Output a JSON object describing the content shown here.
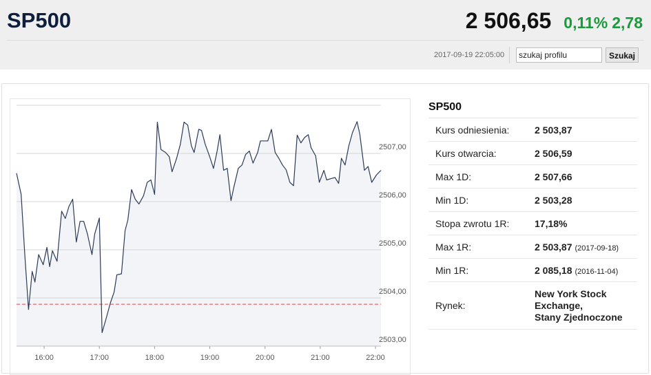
{
  "header": {
    "title": "SP500",
    "price": "2 506,65",
    "change_pct": "0,11%",
    "change": "2,78",
    "timestamp": "2017-09-19 22:05:00",
    "search_placeholder": "szukaj profilu",
    "search_button": "Szukaj"
  },
  "chart_data": {
    "type": "line",
    "line_color": "#2b3a57",
    "area_color": "#f2f4f7",
    "x": [
      930,
      935,
      939,
      943,
      947,
      950,
      954,
      959,
      963,
      966,
      969,
      974,
      979,
      983,
      987,
      991,
      995,
      999,
      1003,
      1007,
      1012,
      1015,
      1020,
      1023,
      1027,
      1032,
      1036,
      1039,
      1044,
      1048,
      1051,
      1055,
      1059,
      1063,
      1068,
      1072,
      1076,
      1080,
      1083,
      1087,
      1092,
      1096,
      1099,
      1104,
      1108,
      1112,
      1116,
      1120,
      1123,
      1128,
      1131,
      1135,
      1140,
      1144,
      1148,
      1151,
      1155,
      1159,
      1163,
      1166,
      1171,
      1175,
      1179,
      1183,
      1187,
      1192,
      1195,
      1199,
      1203,
      1207,
      1211,
      1215,
      1219,
      1223,
      1227,
      1231,
      1235,
      1239,
      1243,
      1247,
      1250,
      1255,
      1259,
      1264,
      1267,
      1272,
      1276,
      1280,
      1283,
      1287,
      1291,
      1295,
      1300,
      1303,
      1308,
      1312,
      1316,
      1321,
      1326
    ],
    "values": [
      2506.59,
      2506.15,
      2504.9,
      2503.76,
      2504.55,
      2504.33,
      2504.9,
      2504.69,
      2505.05,
      2504.65,
      2504.98,
      2504.76,
      2505.8,
      2505.65,
      2505.9,
      2506.05,
      2505.16,
      2505.59,
      2505.59,
      2505.33,
      2504.9,
      2505.33,
      2505.66,
      2503.28,
      2503.55,
      2503.9,
      2504.12,
      2504.48,
      2504.5,
      2505.4,
      2505.62,
      2506.25,
      2506.05,
      2505.95,
      2506.12,
      2506.4,
      2506.45,
      2506.15,
      2507.65,
      2507.08,
      2507.02,
      2506.93,
      2506.62,
      2506.9,
      2507.19,
      2507.65,
      2507.59,
      2507.16,
      2507.02,
      2507.5,
      2507.48,
      2507.19,
      2506.93,
      2506.69,
      2507.05,
      2507.39,
      2506.65,
      2506.69,
      2506.02,
      2506.29,
      2506.69,
      2506.76,
      2506.98,
      2507.05,
      2506.8,
      2507.02,
      2507.26,
      2507.26,
      2507.26,
      2507.5,
      2507.02,
      2506.9,
      2506.76,
      2506.66,
      2506.4,
      2506.33,
      2507.38,
      2507.22,
      2507.33,
      2507.39,
      2507.12,
      2506.95,
      2506.4,
      2506.65,
      2506.45,
      2506.48,
      2506.5,
      2506.38,
      2506.9,
      2506.76,
      2507.15,
      2507.43,
      2507.66,
      2507.4,
      2506.65,
      2506.73,
      2506.4,
      2506.55,
      2506.65
    ],
    "xlim": [
      930,
      1326
    ],
    "xticks": [
      {
        "value": 960,
        "label": "16:00"
      },
      {
        "value": 1020,
        "label": "17:00"
      },
      {
        "value": 1080,
        "label": "18:00"
      },
      {
        "value": 1140,
        "label": "19:00"
      },
      {
        "value": 1200,
        "label": "20:00"
      },
      {
        "value": 1260,
        "label": "21:00"
      },
      {
        "value": 1320,
        "label": "22:00"
      }
    ],
    "ylim": [
      2503,
      2508
    ],
    "yticks": [
      {
        "value": 2503,
        "label": "2503,00"
      },
      {
        "value": 2504,
        "label": "2504,00"
      },
      {
        "value": 2505,
        "label": "2505,00"
      },
      {
        "value": 2506,
        "label": "2506,00"
      },
      {
        "value": 2507,
        "label": "2507,00"
      }
    ],
    "grid": true,
    "reference_line": 2503.87,
    "reference_color": "#e04848"
  },
  "info": {
    "title": "SP500",
    "rows": [
      {
        "label": "Kurs odniesienia:",
        "value": "2 503,87"
      },
      {
        "label": "Kurs otwarcia:",
        "value": "2 506,59"
      },
      {
        "label": "Max 1D:",
        "value": "2 507,66"
      },
      {
        "label": "Min 1D:",
        "value": "2 503,28"
      },
      {
        "label": "Stopa zwrotu 1R:",
        "value": "17,18%"
      },
      {
        "label": "Max 1R:",
        "value": "2 503,87",
        "note": "(2017-09-18)"
      },
      {
        "label": "Min 1R:",
        "value": "2 085,18",
        "note": "(2016-11-04)"
      }
    ],
    "market": {
      "label": "Rynek:",
      "value": "New York Stock Exchange,",
      "country": "Stany Zjednoczone"
    }
  }
}
